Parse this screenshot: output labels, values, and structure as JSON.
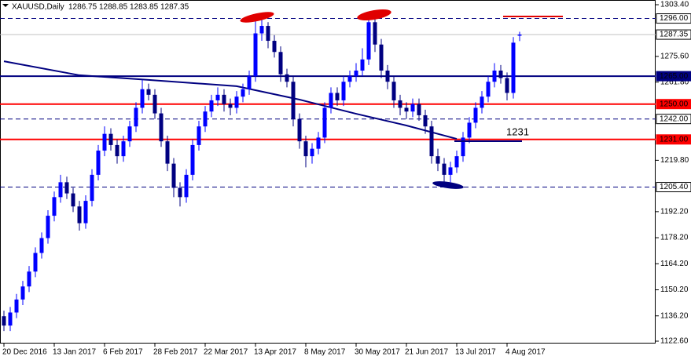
{
  "chart_data": {
    "type": "candlestick",
    "symbol": "XAUUSD,Daily",
    "up_color": "#0000ff",
    "down_color": "#000080",
    "categories": [
      "20 Dec 2016",
      null,
      null,
      null,
      null,
      null,
      null,
      null,
      "13 Jan 2017",
      null,
      null,
      null,
      null,
      null,
      null,
      null,
      "6 Feb 2017",
      null,
      null,
      null,
      null,
      null,
      null,
      null,
      "28 Feb 2017",
      null,
      null,
      null,
      null,
      null,
      null,
      null,
      "22 Mar 2017",
      null,
      null,
      null,
      null,
      null,
      null,
      null,
      "13 Apr 2017",
      null,
      null,
      null,
      null,
      null,
      null,
      null,
      "8 May 2017",
      null,
      null,
      null,
      null,
      null,
      null,
      null,
      "30 May 2017",
      null,
      null,
      null,
      null,
      null,
      null,
      null,
      "21 Jun 2017",
      null,
      null,
      null,
      null,
      null,
      null,
      null,
      "13 Jul 2017",
      null,
      null,
      null,
      null,
      null,
      null,
      null,
      "4 Aug 2017",
      null,
      null
    ],
    "open": [
      1136,
      1131,
      1138,
      1145,
      1152,
      1160,
      1170,
      1178,
      1190,
      1200,
      1208,
      1202,
      1195,
      1186,
      1198,
      1212,
      1225,
      1234,
      1228,
      1222,
      1230,
      1238,
      1248,
      1258,
      1255,
      1245,
      1230,
      1218,
      1205,
      1200,
      1212,
      1228,
      1238,
      1246,
      1252,
      1255,
      1250,
      1248,
      1254,
      1258,
      1265,
      1288,
      1292,
      1284,
      1278,
      1266,
      1262,
      1242,
      1230,
      1222,
      1226,
      1232,
      1248,
      1256,
      1252,
      1262,
      1265,
      1268,
      1274,
      1294,
      1282,
      1268,
      1262,
      1252,
      1248,
      1246,
      1250,
      1244,
      1238,
      1222,
      1218,
      1212,
      1216,
      1222,
      1232,
      1240,
      1248,
      1254,
      1262,
      1268,
      1264,
      1256,
      1286.75
    ],
    "high": [
      1139,
      1141,
      1148,
      1155,
      1163,
      1173,
      1181,
      1193,
      1203,
      1212,
      1211,
      1205,
      1198,
      1201,
      1215,
      1228,
      1238,
      1237,
      1231,
      1233,
      1241,
      1251,
      1263,
      1261,
      1258,
      1248,
      1233,
      1221,
      1208,
      1215,
      1231,
      1241,
      1249,
      1255,
      1259,
      1258,
      1253,
      1257,
      1261,
      1268,
      1296,
      1297,
      1294,
      1287,
      1281,
      1269,
      1265,
      1245,
      1233,
      1229,
      1235,
      1251,
      1259,
      1259,
      1265,
      1268,
      1272,
      1280,
      1297,
      1296,
      1285,
      1271,
      1265,
      1255,
      1251,
      1253,
      1253,
      1247,
      1241,
      1226,
      1221,
      1219,
      1225,
      1235,
      1243,
      1251,
      1257,
      1265,
      1272,
      1271,
      1267,
      1286,
      1288.85
    ],
    "low": [
      1128,
      1128,
      1135,
      1142,
      1149,
      1157,
      1167,
      1175,
      1187,
      1197,
      1199,
      1192,
      1182,
      1183,
      1195,
      1209,
      1222,
      1225,
      1218,
      1219,
      1227,
      1235,
      1245,
      1252,
      1242,
      1227,
      1214,
      1200,
      1195,
      1197,
      1209,
      1225,
      1235,
      1243,
      1249,
      1246,
      1244,
      1245,
      1251,
      1255,
      1262,
      1284,
      1280,
      1275,
      1262,
      1259,
      1238,
      1226,
      1216,
      1218,
      1223,
      1229,
      1245,
      1249,
      1249,
      1259,
      1262,
      1265,
      1271,
      1278,
      1264,
      1258,
      1248,
      1244,
      1242,
      1243,
      1241,
      1234,
      1218,
      1214,
      1206,
      1208,
      1213,
      1219,
      1229,
      1237,
      1245,
      1251,
      1259,
      1261,
      1252,
      1253,
      1283.85
    ],
    "close": [
      1131,
      1138,
      1145,
      1152,
      1160,
      1170,
      1178,
      1190,
      1200,
      1208,
      1202,
      1195,
      1186,
      1198,
      1212,
      1225,
      1234,
      1228,
      1222,
      1230,
      1238,
      1248,
      1258,
      1255,
      1245,
      1230,
      1218,
      1205,
      1200,
      1212,
      1228,
      1238,
      1246,
      1252,
      1255,
      1250,
      1248,
      1254,
      1258,
      1265,
      1288,
      1292,
      1284,
      1278,
      1266,
      1262,
      1242,
      1230,
      1222,
      1226,
      1232,
      1248,
      1256,
      1252,
      1262,
      1265,
      1268,
      1274,
      1294,
      1282,
      1268,
      1262,
      1252,
      1248,
      1246,
      1250,
      1244,
      1238,
      1222,
      1218,
      1212,
      1216,
      1222,
      1232,
      1240,
      1248,
      1254,
      1262,
      1268,
      1264,
      1256,
      1283,
      1287.35
    ],
    "moving_average": {
      "color": "#000080",
      "x": [
        0,
        12,
        23,
        37,
        47,
        56,
        64,
        72
      ],
      "values": [
        1273,
        1265.5,
        1263,
        1259.6,
        1252.4,
        1244.8,
        1238.5,
        1231.3
      ]
    },
    "levels": [
      {
        "value": 1296,
        "label": "1296.00",
        "style": "dashed",
        "color": "#000080"
      },
      {
        "value": 1287.35,
        "label": "1287.35",
        "style": "current",
        "color": "#c0c0c0"
      },
      {
        "value": 1265,
        "label": "1265.00",
        "style": "solid",
        "color": "#000080"
      },
      {
        "value": 1250,
        "label": "1250.00",
        "style": "solid",
        "color": "#ff0000"
      },
      {
        "value": 1242,
        "label": "1242.00",
        "style": "dashed",
        "color": "#000080"
      },
      {
        "value": 1231,
        "label": "1231.00",
        "style": "solid",
        "color": "#ff0000"
      },
      {
        "value": 1205.4,
        "label": "1205.40",
        "style": "dashed",
        "color": "#000080"
      }
    ],
    "annotation": "1231",
    "ylim": [
      1122.6,
      1303.4
    ],
    "yticks": [
      {
        "value": 1303.4,
        "label": "1303.40"
      },
      {
        "value": 1275.6,
        "label": "1275.60"
      },
      {
        "value": 1261.8,
        "label": "1261.80"
      },
      {
        "value": 1219.8,
        "label": "1219.80"
      },
      {
        "value": 1192.2,
        "label": "1192.20"
      },
      {
        "value": 1178.2,
        "label": "1178.20"
      },
      {
        "value": 1164.2,
        "label": "1164.20"
      },
      {
        "value": 1150.2,
        "label": "1150.20"
      },
      {
        "value": 1136.2,
        "label": "1136.20"
      },
      {
        "value": 1122.6,
        "label": "1122.60"
      }
    ]
  }
}
